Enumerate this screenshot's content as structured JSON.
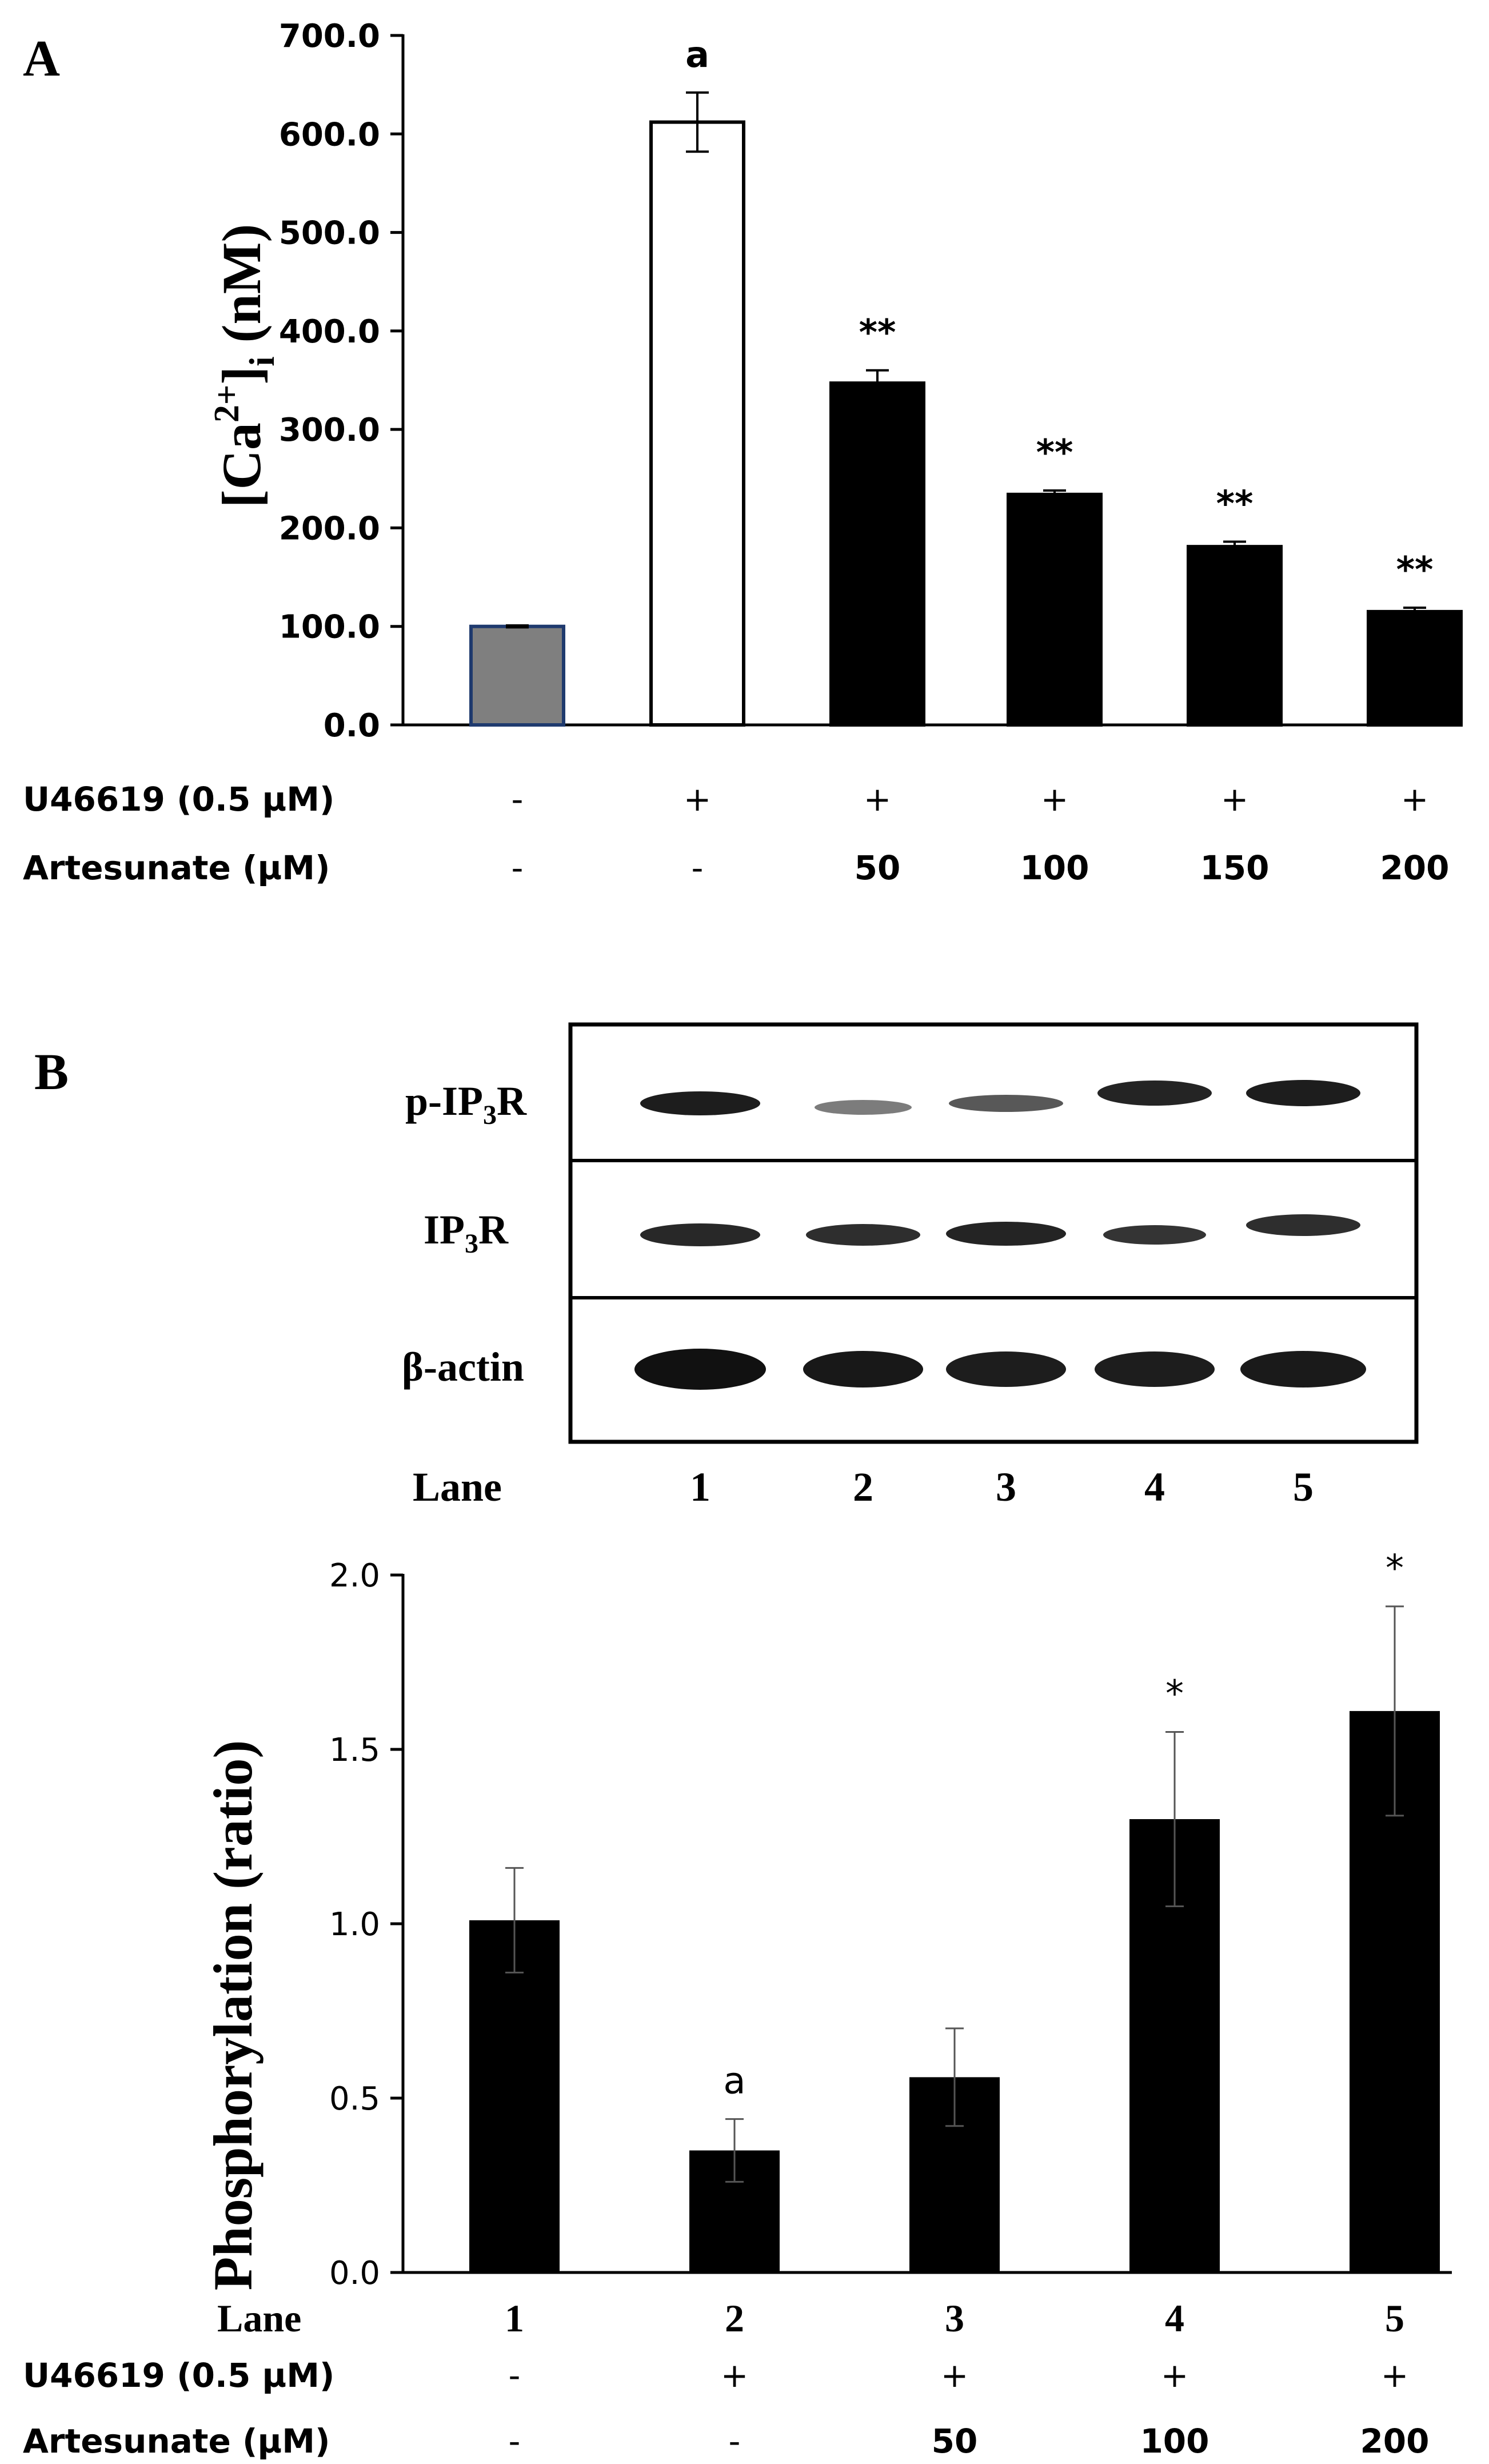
{
  "colors": {
    "bar_black": "#000000",
    "bar_grey": "#7f7f7f",
    "bar_grey_edge": "#1f3a6e",
    "bar_white": "#ffffff"
  },
  "panel_a": {
    "label": "A",
    "row_labels": [
      "U46619  (0.5 µM)",
      "Artesunate (µM)"
    ],
    "treatments": [
      [
        "-",
        "+",
        "+",
        "+",
        "+",
        "+"
      ],
      [
        "-",
        "-",
        "50",
        "100",
        "150",
        "200"
      ]
    ]
  },
  "panel_b": {
    "label": "B",
    "blot_rows": [
      {
        "label_main": "p-IP",
        "label_sub": "3",
        "label_tail": "R"
      },
      {
        "label_main": "IP",
        "label_sub": "3",
        "label_tail": "R"
      },
      {
        "label_main": "β-actin",
        "label_sub": "",
        "label_tail": ""
      }
    ],
    "lane_title": "Lane",
    "lanes": [
      "1",
      "2",
      "3",
      "4",
      "5"
    ],
    "row_labels": [
      "Lane",
      "U46619  (0.5 µM)",
      "Artesunate (µM)"
    ],
    "treatments": [
      [
        "-",
        "+",
        "+",
        "+",
        "+"
      ],
      [
        "-",
        "-",
        "50",
        "100",
        "200"
      ]
    ]
  },
  "chart_data": [
    {
      "type": "bar",
      "title": "",
      "ylabel_main": "[Ca",
      "ylabel_sup": "2+",
      "ylabel_mid": "]",
      "ylabel_sub": "i",
      "ylabel_tail": " (nM)",
      "xlabel": "",
      "ylim": [
        0,
        700
      ],
      "yticks": [
        "0.0",
        "100.0",
        "200.0",
        "300.0",
        "400.0",
        "500.0",
        "600.0",
        "700.0"
      ],
      "values": [
        100,
        612,
        347,
        234,
        181,
        115
      ],
      "errors": [
        1,
        30,
        13,
        4,
        5,
        4
      ],
      "annotations": [
        "",
        "a",
        "**",
        "**",
        "**",
        "**"
      ],
      "bar_styles": [
        "grey",
        "white",
        "black",
        "black",
        "black",
        "black"
      ]
    },
    {
      "type": "bar",
      "title": "",
      "ylabel": "Phosphorylation (ratio)",
      "xlabel": "",
      "categories": [
        "1",
        "2",
        "3",
        "4",
        "5"
      ],
      "ylim": [
        0,
        2.0
      ],
      "yticks": [
        "0.0",
        "0.5",
        "1.0",
        "1.5",
        "2.0"
      ],
      "values": [
        1.01,
        0.35,
        0.56,
        1.3,
        1.61
      ],
      "errors": [
        0.15,
        0.09,
        0.14,
        0.25,
        0.3
      ],
      "annotations": [
        "",
        "a",
        "",
        "*",
        "*"
      ]
    }
  ]
}
